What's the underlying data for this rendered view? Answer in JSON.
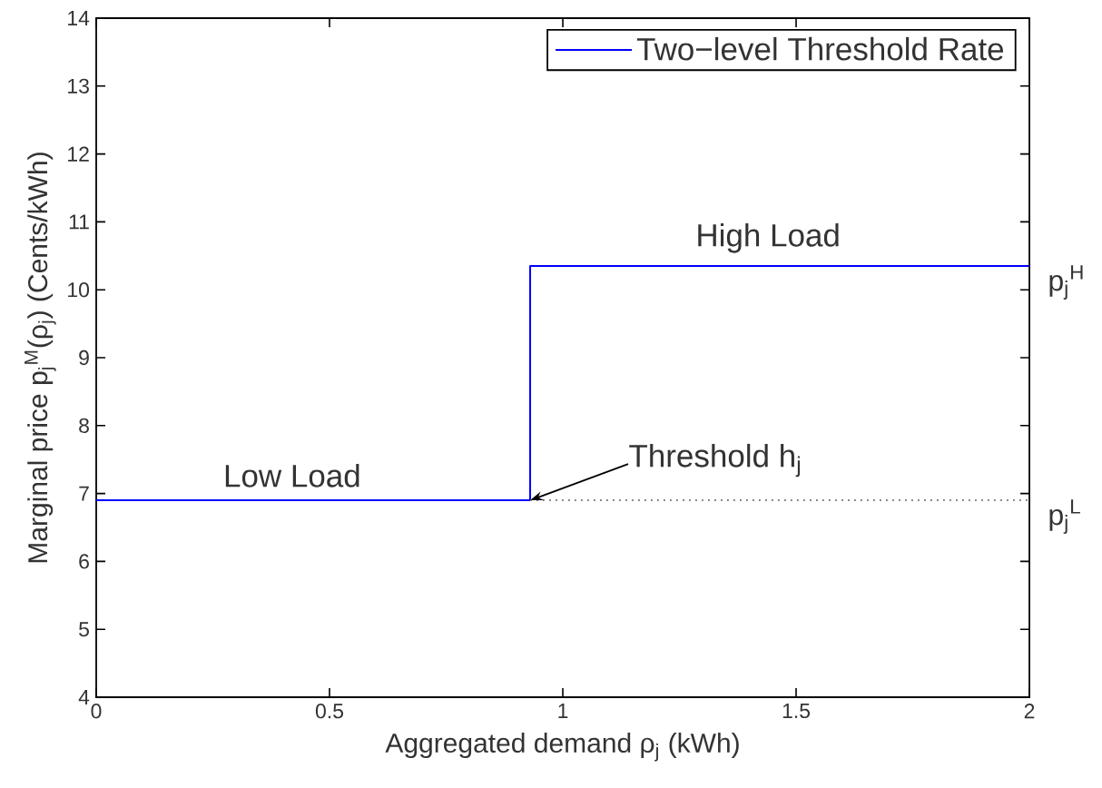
{
  "chart_data": {
    "type": "line",
    "xlabel": "Aggregated demand  ρ$_{j}$      (kWh)",
    "ylabel": "Marginal price p$_{j}$$^{M}$(ρ$_{j}$)       (Cents/kWh)",
    "xlim": [
      0,
      2
    ],
    "ylim": [
      4,
      14
    ],
    "xticks": [
      0,
      0.5,
      1,
      1.5,
      2
    ],
    "yticks": [
      4,
      5,
      6,
      7,
      8,
      9,
      10,
      11,
      12,
      13,
      14
    ],
    "legend": "top right",
    "series": [
      {
        "name": "Two−level Threshold Rate",
        "color": "#0000ff",
        "x": [
          0,
          0.93,
          0.93,
          2
        ],
        "values": [
          6.9,
          6.9,
          10.35,
          10.35
        ]
      },
      {
        "color": "#808080",
        "line_style": "dotted",
        "x": [
          0.93,
          2
        ],
        "values": [
          6.9,
          6.9
        ]
      }
    ],
    "annotations": [
      {
        "text": "Low Load",
        "x": 0.42,
        "y": 6.9
      },
      {
        "text": "High Load",
        "x": 1.44,
        "y": 10.35
      },
      {
        "text": "Threshold h$_{j}$",
        "x": 0.93,
        "y": 6.9
      },
      {
        "text": "p$_{j}$$^{H}$",
        "x": 2,
        "y": 10.35
      },
      {
        "text": "p$_{j}$$^{L}$",
        "x": 2,
        "y": 6.9
      }
    ]
  }
}
